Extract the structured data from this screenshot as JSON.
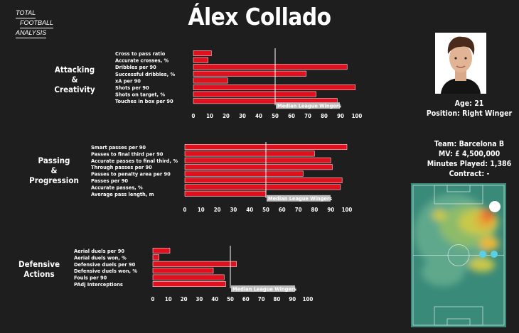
{
  "header": {
    "logo_lines": [
      "TOTAL",
      "FOOTBALL",
      "ANALYSIS"
    ],
    "title": "Álex Collado"
  },
  "player": {
    "age": "Age: 21",
    "position": "Position: Right Winger",
    "team": "Team: Barcelona B",
    "mv": "MV: £ 4,500,000",
    "minutes": "Minutes Played: 1,386",
    "contract": "Contract: -"
  },
  "colors": {
    "bar_fill": "#e0101e",
    "bar_stroke": "#ffffff",
    "median_line": "#ffffff",
    "median_label_bg": "#bdbdbd",
    "background": "#1e1e1e"
  },
  "chart_data": [
    {
      "type": "bar",
      "orientation": "horizontal",
      "section_label": [
        "Attacking",
        "&",
        "Creativity"
      ],
      "categories": [
        "Cross to pass ratio",
        "Accurate crosses, %",
        "Dribbles per 90",
        "Successful dribbles, %",
        "xA per 90",
        "Shots per 90",
        "Shots on target, %",
        "Touches in box per 90"
      ],
      "values": [
        11,
        9,
        94,
        69,
        21,
        99,
        75,
        88
      ],
      "xlim": [
        0,
        100
      ],
      "xticks": [
        0,
        10,
        20,
        30,
        40,
        50,
        60,
        70,
        80,
        90,
        100
      ],
      "median": 50,
      "median_label": "Median League Wingers"
    },
    {
      "type": "bar",
      "orientation": "horizontal",
      "section_label": [
        "Passing",
        "&",
        "Progression"
      ],
      "categories": [
        "Smart passes per 90",
        "Passes to final third per 90",
        "Accurate passes to final third, %",
        "Through passes per 90",
        "Passes to penalty area per 90",
        "Passes per 90",
        "Accurate passes, %",
        "Average pass length, m"
      ],
      "values": [
        100,
        80,
        90,
        91,
        73,
        97,
        96,
        50
      ],
      "xlim": [
        0,
        100
      ],
      "xticks": [
        0,
        10,
        20,
        30,
        40,
        50,
        60,
        70,
        80,
        90,
        100
      ],
      "median": 50,
      "median_label": "Median League Wingers"
    },
    {
      "type": "bar",
      "orientation": "horizontal",
      "section_label": [
        "Defensive",
        "Actions"
      ],
      "categories": [
        "Aerial duels per 90",
        "Aerial duels won, %",
        "Defensive duels per 90",
        "Defensive duels won, %",
        "Fouls per 90",
        "PAdj Interceptions"
      ],
      "values": [
        11,
        4,
        54,
        39,
        46,
        47
      ],
      "xlim": [
        0,
        100
      ],
      "xticks": [
        0,
        10,
        20,
        30,
        40,
        50,
        60,
        70,
        80,
        90,
        100
      ],
      "median": 50,
      "median_label": "Median League Wingers"
    }
  ]
}
